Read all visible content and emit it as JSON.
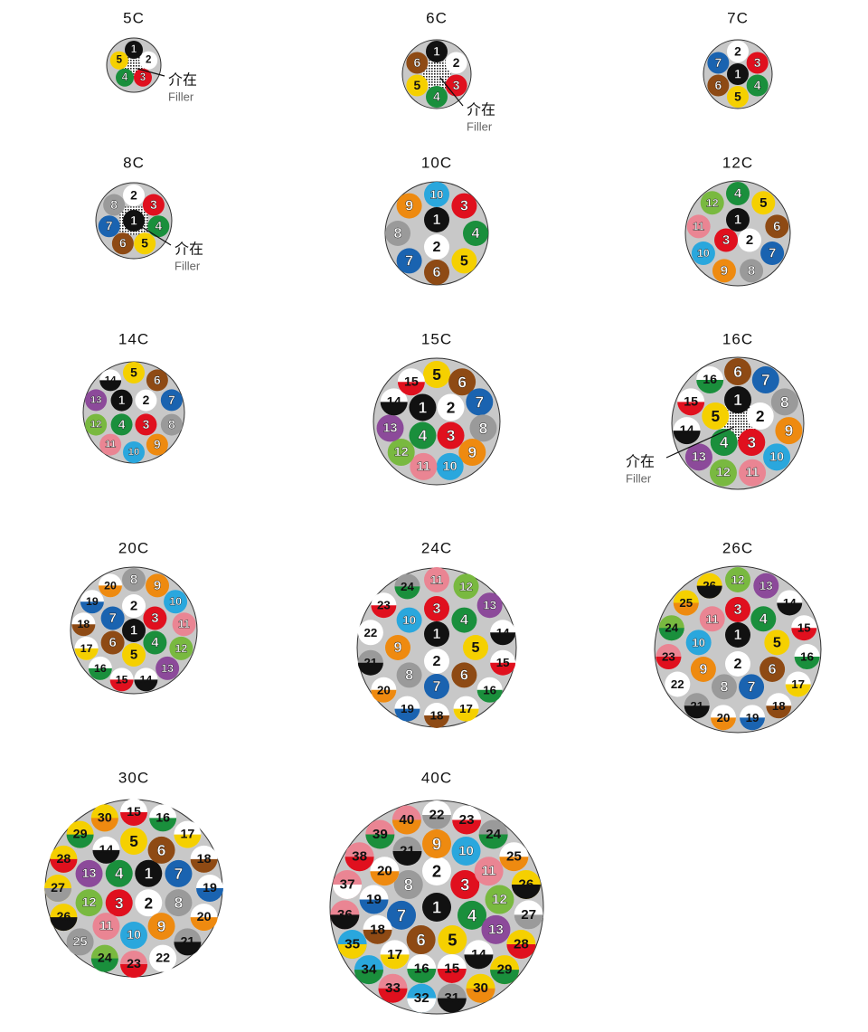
{
  "cables": [
    {
      "title": "5C",
      "filler": {
        "label": "介在",
        "sublabel": "Filler"
      },
      "cores": [
        [
          "1",
          "#111111"
        ],
        [
          "2",
          "#ffffff"
        ],
        [
          "3",
          "#e0101e"
        ],
        [
          "4",
          "#1a8f3c"
        ],
        [
          "5",
          "#f5d000"
        ]
      ]
    },
    {
      "title": "6C",
      "filler": {
        "label": "介在",
        "sublabel": "Filler"
      },
      "cores": [
        [
          "1",
          "#111111"
        ],
        [
          "2",
          "#ffffff"
        ],
        [
          "3",
          "#e0101e"
        ],
        [
          "4",
          "#1a8f3c"
        ],
        [
          "5",
          "#f5d000"
        ],
        [
          "6",
          "#8e4a14"
        ]
      ]
    },
    {
      "title": "7C",
      "cores": [
        [
          "1",
          "#111111"
        ],
        [
          "2",
          "#ffffff"
        ],
        [
          "3",
          "#e0101e"
        ],
        [
          "4",
          "#1a8f3c"
        ],
        [
          "5",
          "#f5d000"
        ],
        [
          "6",
          "#8e4a14"
        ],
        [
          "7",
          "#1a63b0"
        ]
      ]
    },
    {
      "title": "8C",
      "filler": {
        "label": "介在",
        "sublabel": "Filler"
      },
      "cores": [
        [
          "1",
          "#111111"
        ],
        [
          "2",
          "#ffffff"
        ],
        [
          "3",
          "#e0101e"
        ],
        [
          "4",
          "#1a8f3c"
        ],
        [
          "5",
          "#f5d000"
        ],
        [
          "6",
          "#8e4a14"
        ],
        [
          "7",
          "#1a63b0"
        ],
        [
          "8",
          "#9a9a9a"
        ]
      ]
    },
    {
      "title": "10C",
      "cores": [
        [
          "1",
          "#111111"
        ],
        [
          "2",
          "#ffffff"
        ],
        [
          "10",
          "#2aa7dd"
        ],
        [
          "3",
          "#e0101e"
        ],
        [
          "4",
          "#1a8f3c"
        ],
        [
          "5",
          "#f5d000"
        ],
        [
          "6",
          "#8e4a14"
        ],
        [
          "7",
          "#1a63b0"
        ],
        [
          "8",
          "#9a9a9a"
        ],
        [
          "9",
          "#ee8a10"
        ]
      ]
    },
    {
      "title": "12C",
      "cores": [
        [
          "1",
          "#111111"
        ],
        [
          "2",
          "#ffffff"
        ],
        [
          "3",
          "#e0101e"
        ],
        [
          "4",
          "#1a8f3c"
        ],
        [
          "5",
          "#f5d000"
        ],
        [
          "6",
          "#8e4a14"
        ],
        [
          "7",
          "#1a63b0"
        ],
        [
          "8",
          "#9a9a9a"
        ],
        [
          "9",
          "#ee8a10"
        ],
        [
          "10",
          "#2aa7dd"
        ],
        [
          "11",
          "#ea8593"
        ],
        [
          "12",
          "#79b940"
        ]
      ]
    },
    {
      "title": "14C",
      "cores": [
        [
          "1",
          "#111111"
        ],
        [
          "2",
          "#ffffff"
        ],
        [
          "3",
          "#e0101e"
        ],
        [
          "4",
          "#1a8f3c"
        ],
        [
          "5",
          "#f5d000"
        ],
        [
          "6",
          "#8e4a14"
        ],
        [
          "7",
          "#1a63b0"
        ],
        [
          "8",
          "#9a9a9a"
        ],
        [
          "9",
          "#ee8a10"
        ],
        [
          "10",
          "#2aa7dd"
        ],
        [
          "11",
          "#ea8593"
        ],
        [
          "12",
          "#79b940"
        ],
        [
          "13",
          "#8c4a9a"
        ],
        [
          "14",
          "#ffffff",
          "#111111"
        ]
      ]
    },
    {
      "title": "15C",
      "cores": [
        [
          "1",
          "#111111"
        ],
        [
          "2",
          "#ffffff"
        ],
        [
          "3",
          "#e0101e"
        ],
        [
          "4",
          "#1a8f3c"
        ],
        [
          "5",
          "#f5d000"
        ],
        [
          "6",
          "#8e4a14"
        ],
        [
          "7",
          "#1a63b0"
        ],
        [
          "8",
          "#9a9a9a"
        ],
        [
          "9",
          "#ee8a10"
        ],
        [
          "10",
          "#2aa7dd"
        ],
        [
          "11",
          "#ea8593"
        ],
        [
          "12",
          "#79b940"
        ],
        [
          "13",
          "#8c4a9a"
        ],
        [
          "14",
          "#ffffff",
          "#111111"
        ],
        [
          "15",
          "#ffffff",
          "#e0101e"
        ]
      ]
    },
    {
      "title": "16C",
      "filler": {
        "label": "介在",
        "sublabel": "Filler"
      },
      "cores": [
        [
          "1",
          "#111111"
        ],
        [
          "2",
          "#ffffff"
        ],
        [
          "3",
          "#e0101e"
        ],
        [
          "4",
          "#1a8f3c"
        ],
        [
          "5",
          "#f5d000"
        ],
        [
          "6",
          "#8e4a14"
        ],
        [
          "7",
          "#1a63b0"
        ],
        [
          "8",
          "#9a9a9a"
        ],
        [
          "9",
          "#ee8a10"
        ],
        [
          "10",
          "#2aa7dd"
        ],
        [
          "11",
          "#ea8593"
        ],
        [
          "12",
          "#79b940"
        ],
        [
          "13",
          "#8c4a9a"
        ],
        [
          "14",
          "#ffffff",
          "#111111"
        ],
        [
          "15",
          "#ffffff",
          "#e0101e"
        ],
        [
          "16",
          "#ffffff",
          "#1a8f3c"
        ]
      ]
    },
    {
      "title": "20C",
      "cores": [
        [
          "1",
          "#111111"
        ],
        [
          "2",
          "#ffffff"
        ],
        [
          "3",
          "#e0101e"
        ],
        [
          "4",
          "#1a8f3c"
        ],
        [
          "5",
          "#f5d000"
        ],
        [
          "6",
          "#8e4a14"
        ],
        [
          "7",
          "#1a63b0"
        ],
        [
          "8",
          "#9a9a9a"
        ],
        [
          "9",
          "#ee8a10"
        ],
        [
          "10",
          "#2aa7dd"
        ],
        [
          "11",
          "#ea8593"
        ],
        [
          "12",
          "#79b940"
        ],
        [
          "13",
          "#8c4a9a"
        ],
        [
          "14",
          "#ffffff",
          "#111111"
        ],
        [
          "15",
          "#ffffff",
          "#e0101e"
        ],
        [
          "16",
          "#ffffff",
          "#1a8f3c"
        ],
        [
          "17",
          "#ffffff",
          "#f5d000"
        ],
        [
          "18",
          "#ffffff",
          "#8e4a14"
        ],
        [
          "19",
          "#ffffff",
          "#1a63b0"
        ],
        [
          "20",
          "#ffffff",
          "#ee8a10"
        ]
      ]
    },
    {
      "title": "24C",
      "cores": [
        [
          "1",
          "#111111"
        ],
        [
          "2",
          "#ffffff"
        ],
        [
          "3",
          "#e0101e"
        ],
        [
          "4",
          "#1a8f3c"
        ],
        [
          "5",
          "#f5d000"
        ],
        [
          "6",
          "#8e4a14"
        ],
        [
          "7",
          "#1a63b0"
        ],
        [
          "8",
          "#9a9a9a"
        ],
        [
          "9",
          "#ee8a10"
        ],
        [
          "10",
          "#2aa7dd"
        ],
        [
          "11",
          "#ea8593"
        ],
        [
          "12",
          "#79b940"
        ],
        [
          "13",
          "#8c4a9a"
        ],
        [
          "14",
          "#ffffff",
          "#111111"
        ],
        [
          "15",
          "#ffffff",
          "#e0101e"
        ],
        [
          "16",
          "#ffffff",
          "#1a8f3c"
        ],
        [
          "17",
          "#ffffff",
          "#f5d000"
        ],
        [
          "18",
          "#ffffff",
          "#8e4a14"
        ],
        [
          "19",
          "#ffffff",
          "#1a63b0"
        ],
        [
          "20",
          "#ffffff",
          "#ee8a10"
        ],
        [
          "21",
          "#9a9a9a",
          "#111111"
        ],
        [
          "22",
          "#ffffff"
        ],
        [
          "23",
          "#ffffff",
          "#e0101e"
        ],
        [
          "24",
          "#9a9a9a",
          "#1a8f3c"
        ]
      ]
    },
    {
      "title": "26C",
      "cores": [
        [
          "1",
          "#111111"
        ],
        [
          "2",
          "#ffffff"
        ],
        [
          "3",
          "#e0101e"
        ],
        [
          "4",
          "#1a8f3c"
        ],
        [
          "5",
          "#f5d000"
        ],
        [
          "6",
          "#8e4a14"
        ],
        [
          "7",
          "#1a63b0"
        ],
        [
          "8",
          "#9a9a9a"
        ],
        [
          "9",
          "#ee8a10"
        ],
        [
          "10",
          "#2aa7dd"
        ],
        [
          "11",
          "#ea8593"
        ],
        [
          "12",
          "#79b940"
        ],
        [
          "13",
          "#8c4a9a"
        ],
        [
          "14",
          "#ffffff",
          "#111111"
        ],
        [
          "15",
          "#ffffff",
          "#e0101e"
        ],
        [
          "16",
          "#ffffff",
          "#1a8f3c"
        ],
        [
          "17",
          "#ffffff",
          "#f5d000"
        ],
        [
          "18",
          "#ffffff",
          "#8e4a14"
        ],
        [
          "19",
          "#ffffff",
          "#1a63b0"
        ],
        [
          "20",
          "#ffffff",
          "#ee8a10"
        ],
        [
          "21",
          "#9a9a9a",
          "#111111"
        ],
        [
          "22",
          "#ffffff"
        ],
        [
          "23",
          "#ea8593",
          "#e0101e"
        ],
        [
          "24",
          "#79b940",
          "#1a8f3c"
        ],
        [
          "25",
          "#f5d000",
          "#ee8a10"
        ],
        [
          "26",
          "#f5d000",
          "#111111"
        ]
      ]
    },
    {
      "title": "30C",
      "cores": [
        [
          "1",
          "#111111"
        ],
        [
          "2",
          "#ffffff"
        ],
        [
          "3",
          "#e0101e"
        ],
        [
          "4",
          "#1a8f3c"
        ],
        [
          "5",
          "#f5d000"
        ],
        [
          "6",
          "#8e4a14"
        ],
        [
          "7",
          "#1a63b0"
        ],
        [
          "8",
          "#9a9a9a"
        ],
        [
          "9",
          "#ee8a10"
        ],
        [
          "10",
          "#2aa7dd"
        ],
        [
          "11",
          "#ea8593"
        ],
        [
          "12",
          "#79b940"
        ],
        [
          "13",
          "#8c4a9a"
        ],
        [
          "14",
          "#ffffff",
          "#111111"
        ],
        [
          "15",
          "#ffffff",
          "#e0101e"
        ],
        [
          "16",
          "#ffffff",
          "#1a8f3c"
        ],
        [
          "17",
          "#ffffff",
          "#f5d000"
        ],
        [
          "18",
          "#ffffff",
          "#8e4a14"
        ],
        [
          "19",
          "#ffffff",
          "#1a63b0"
        ],
        [
          "20",
          "#ffffff",
          "#ee8a10"
        ],
        [
          "21",
          "#9a9a9a",
          "#111111"
        ],
        [
          "22",
          "#ffffff"
        ],
        [
          "23",
          "#ea8593",
          "#e0101e"
        ],
        [
          "24",
          "#79b940",
          "#1a8f3c"
        ],
        [
          "25",
          "#9a9a9a"
        ],
        [
          "26",
          "#f5d000",
          "#111111"
        ],
        [
          "27",
          "#f5d000",
          "#9a9a9a"
        ],
        [
          "28",
          "#f5d000",
          "#e0101e"
        ],
        [
          "29",
          "#f5d000",
          "#1a8f3c"
        ],
        [
          "30",
          "#f5d000",
          "#ee8a10"
        ]
      ]
    },
    {
      "title": "40C",
      "cores": [
        [
          "1",
          "#111111"
        ],
        [
          "2",
          "#ffffff"
        ],
        [
          "3",
          "#e0101e"
        ],
        [
          "4",
          "#1a8f3c"
        ],
        [
          "5",
          "#f5d000"
        ],
        [
          "6",
          "#8e4a14"
        ],
        [
          "7",
          "#1a63b0"
        ],
        [
          "8",
          "#9a9a9a"
        ],
        [
          "9",
          "#ee8a10"
        ],
        [
          "10",
          "#2aa7dd"
        ],
        [
          "11",
          "#ea8593"
        ],
        [
          "12",
          "#79b940"
        ],
        [
          "13",
          "#8c4a9a"
        ],
        [
          "14",
          "#ffffff",
          "#111111"
        ],
        [
          "15",
          "#ffffff",
          "#e0101e"
        ],
        [
          "16",
          "#ffffff",
          "#1a8f3c"
        ],
        [
          "17",
          "#ffffff",
          "#f5d000"
        ],
        [
          "18",
          "#ffffff",
          "#8e4a14"
        ],
        [
          "19",
          "#ffffff",
          "#1a63b0"
        ],
        [
          "20",
          "#ffffff",
          "#ee8a10"
        ],
        [
          "21",
          "#9a9a9a",
          "#111111"
        ],
        [
          "22",
          "#ffffff",
          "#9a9a9a"
        ],
        [
          "23",
          "#ffffff",
          "#e0101e"
        ],
        [
          "24",
          "#9a9a9a",
          "#1a8f3c"
        ],
        [
          "25",
          "#ffffff",
          "#ee8a10"
        ],
        [
          "26",
          "#f5d000",
          "#111111"
        ],
        [
          "27",
          "#ffffff",
          "#9a9a9a"
        ],
        [
          "28",
          "#f5d000",
          "#e0101e"
        ],
        [
          "29",
          "#f5d000",
          "#1a8f3c"
        ],
        [
          "30",
          "#f5d000",
          "#ee8a10"
        ],
        [
          "31",
          "#9a9a9a",
          "#111111"
        ],
        [
          "32",
          "#2aa7dd",
          "#ffffff"
        ],
        [
          "33",
          "#ea8593",
          "#e0101e"
        ],
        [
          "34",
          "#2aa7dd",
          "#1a8f3c"
        ],
        [
          "35",
          "#2aa7dd",
          "#f5d000"
        ],
        [
          "36",
          "#ea8593",
          "#111111"
        ],
        [
          "37",
          "#ea8593",
          "#ffffff"
        ],
        [
          "38",
          "#ea8593",
          "#e0101e"
        ],
        [
          "39",
          "#ea8593",
          "#1a8f3c"
        ],
        [
          "40",
          "#ea8593",
          "#ee8a10"
        ]
      ]
    }
  ]
}
